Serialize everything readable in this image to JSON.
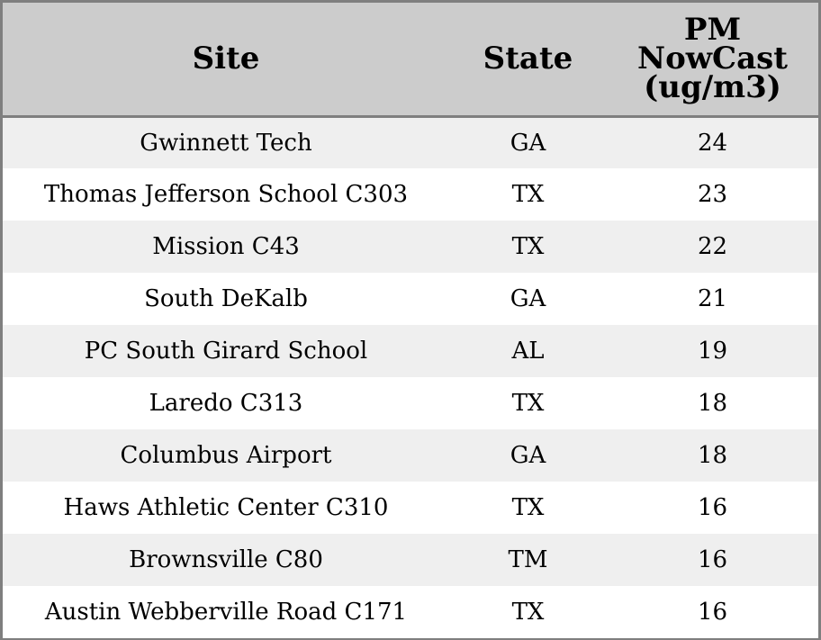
{
  "chart_data": {
    "type": "table",
    "columns": [
      "Site",
      "State",
      "PM NowCast (ug/m3)"
    ],
    "rows": [
      {
        "site": "Gwinnett Tech",
        "state": "GA",
        "pm": "24"
      },
      {
        "site": "Thomas Jefferson School C303",
        "state": "TX",
        "pm": "23"
      },
      {
        "site": "Mission C43",
        "state": "TX",
        "pm": "22"
      },
      {
        "site": "South DeKalb",
        "state": "GA",
        "pm": "21"
      },
      {
        "site": "PC South Girard School",
        "state": "AL",
        "pm": "19"
      },
      {
        "site": "Laredo C313",
        "state": "TX",
        "pm": "18"
      },
      {
        "site": "Columbus Airport",
        "state": "GA",
        "pm": "18"
      },
      {
        "site": "Haws Athletic Center C310",
        "state": "TX",
        "pm": "16"
      },
      {
        "site": "Brownsville C80",
        "state": "TM",
        "pm": "16"
      },
      {
        "site": "Austin Webberville Road C171",
        "state": "TX",
        "pm": "16"
      }
    ]
  },
  "table": {
    "header": {
      "site": "Site",
      "state": "State",
      "pm_line1": "PM",
      "pm_line2": "NowCast",
      "pm_line3": "(ug/m3)"
    }
  },
  "colors": {
    "header_bg": "#cccccc",
    "stripe_bg": "#efefef",
    "border": "#7f7f7f"
  }
}
